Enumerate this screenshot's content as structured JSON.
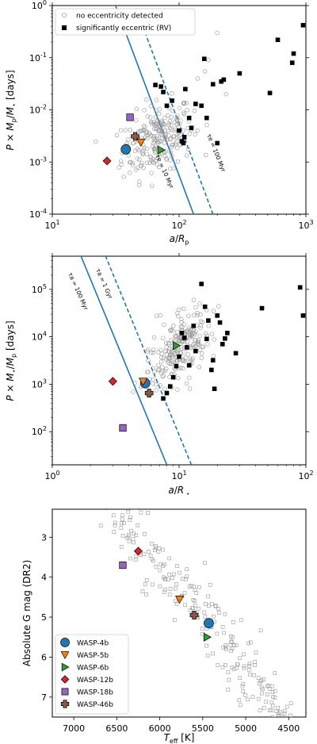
{
  "colors": {
    "wasp4b": "#1f77b4",
    "wasp5b": "#ff7f0e",
    "wasp6b": "#2ca02c",
    "wasp12b": "#d62728",
    "wasp18b": "#9467bd",
    "wasp46b": "#8c564b",
    "timescale_line": "#1f77b4"
  },
  "chart_data": [
    {
      "type": "scatter",
      "xlabel": "a/R_p",
      "ylabel": "P × M_p/M_* [days]",
      "xscale": "log",
      "yscale": "log",
      "xlim": [
        10,
        1000
      ],
      "ylim": [
        0.0001,
        1
      ],
      "xticks": [
        "10^1",
        "10^2",
        "10^3"
      ],
      "yticks": [
        "10^-4",
        "10^-3",
        "10^-2",
        "10^-1",
        "10^0"
      ],
      "legend": {
        "location": "upper-left",
        "entries": [
          "no eccentricity detected",
          "significantly eccentric (RV)"
        ]
      },
      "lines": [
        {
          "label": "τ_e = 10 Myr",
          "style": "solid",
          "x_at_ymin": 130,
          "slope": -6.5
        },
        {
          "label": "τ_e = 100 Myr",
          "style": "dashed",
          "x_at_ymin": 185,
          "slope": -6.5
        }
      ],
      "eccentric": [
        [
          65,
          0.03
        ],
        [
          72,
          0.028
        ],
        [
          75,
          0.022
        ],
        [
          80,
          0.012
        ],
        [
          88,
          0.015
        ],
        [
          100,
          0.004
        ],
        [
          105,
          0.0025
        ],
        [
          108,
          0.0023
        ],
        [
          110,
          0.003
        ],
        [
          112,
          0.025
        ],
        [
          120,
          0.007
        ],
        [
          125,
          0.0045
        ],
        [
          135,
          0.013
        ],
        [
          150,
          0.012
        ],
        [
          158,
          0.095
        ],
        [
          165,
          0.007
        ],
        [
          185,
          0.031
        ],
        [
          200,
          0.0023
        ],
        [
          215,
          0.035
        ],
        [
          225,
          0.038
        ],
        [
          300,
          0.05
        ],
        [
          520,
          0.021
        ],
        [
          600,
          0.22
        ],
        [
          780,
          0.08
        ],
        [
          800,
          0.12
        ],
        [
          950,
          0.42
        ]
      ],
      "highlighted": [
        {
          "name": "WASP-4b",
          "x": 38,
          "y": 0.00175
        },
        {
          "name": "WASP-5b",
          "x": 50,
          "y": 0.0024
        },
        {
          "name": "WASP-6b",
          "x": 72,
          "y": 0.0017
        },
        {
          "name": "WASP-12b",
          "x": 27,
          "y": 0.00105
        },
        {
          "name": "WASP-18b",
          "x": 41,
          "y": 0.0072
        },
        {
          "name": "WASP-46b",
          "x": 45,
          "y": 0.0031
        }
      ]
    },
    {
      "type": "scatter",
      "xlabel": "a/R_*",
      "ylabel": "P × M_*/M_p [days]",
      "xscale": "log",
      "yscale": "log",
      "xlim": [
        1,
        100
      ],
      "ylim": [
        20,
        500000
      ],
      "xticks": [
        "10^0",
        "10^1",
        "10^2"
      ],
      "yticks": [
        "10^2",
        "10^3",
        "10^4",
        "10^5"
      ],
      "lines": [
        {
          "label": "τ_a = 100 Myr",
          "style": "solid",
          "x_at_ymin": 8.0,
          "slope": -6.5
        },
        {
          "label": "τ_a = 1 Gyr",
          "style": "dashed",
          "x_at_ymin": 12.5,
          "slope": -6.5
        }
      ],
      "eccentric": [
        [
          7.5,
          500
        ],
        [
          8,
          650
        ],
        [
          8.5,
          900
        ],
        [
          9,
          1400
        ],
        [
          9.5,
          2400
        ],
        [
          10,
          3800
        ],
        [
          10.5,
          12000
        ],
        [
          11,
          9500
        ],
        [
          11.5,
          6000
        ],
        [
          12,
          2500
        ],
        [
          13,
          17000
        ],
        [
          13.5,
          5000
        ],
        [
          15,
          130000
        ],
        [
          16,
          43000
        ],
        [
          16.5,
          9000
        ],
        [
          17,
          22000
        ],
        [
          18,
          2000
        ],
        [
          18.5,
          3200
        ],
        [
          19,
          800
        ],
        [
          20,
          28000
        ],
        [
          21,
          20000
        ],
        [
          22,
          7000
        ],
        [
          23,
          9200
        ],
        [
          24,
          12000
        ],
        [
          28,
          4500
        ],
        [
          45,
          40000
        ],
        [
          90,
          110000
        ],
        [
          95,
          28000
        ]
      ],
      "highlighted": [
        {
          "name": "WASP-4b",
          "x": 5.4,
          "y": 1050
        },
        {
          "name": "WASP-5b",
          "x": 5.2,
          "y": 1150
        },
        {
          "name": "WASP-6b",
          "x": 9.5,
          "y": 6500
        },
        {
          "name": "WASP-12b",
          "x": 3.0,
          "y": 1150
        },
        {
          "name": "WASP-18b",
          "x": 3.6,
          "y": 120
        },
        {
          "name": "WASP-46b",
          "x": 5.8,
          "y": 650
        }
      ]
    },
    {
      "type": "scatter",
      "xlabel": "T_eff [K]",
      "ylabel": "Absolute G mag (DR2)",
      "xlim": [
        7250,
        4300
      ],
      "ylim": [
        7.5,
        2.3
      ],
      "xticks": [
        "7000",
        "6500",
        "6000",
        "5500",
        "5000",
        "4500"
      ],
      "yticks": [
        "3",
        "4",
        "5",
        "6",
        "7"
      ],
      "legend": {
        "location": "lower-left",
        "entries": [
          "WASP-4b",
          "WASP-5b",
          "WASP-6b",
          "WASP-12b",
          "WASP-18b",
          "WASP-46b"
        ]
      },
      "highlighted": [
        {
          "name": "WASP-4b",
          "x": 5430,
          "y": 5.15
        },
        {
          "name": "WASP-5b",
          "x": 5770,
          "y": 4.55
        },
        {
          "name": "WASP-6b",
          "x": 5450,
          "y": 5.5
        },
        {
          "name": "WASP-12b",
          "x": 6250,
          "y": 3.35
        },
        {
          "name": "WASP-18b",
          "x": 6430,
          "y": 3.7
        },
        {
          "name": "WASP-46b",
          "x": 5600,
          "y": 4.95
        }
      ]
    }
  ],
  "labels": {
    "legend_top_1": "no eccentricity detected",
    "legend_top_2": "significantly eccentric (RV)",
    "line_top_1": "τe = 10 Myr",
    "line_top_2": "τe = 100 Myr",
    "line_mid_1": "τa = 100 Myr",
    "line_mid_2": "τa = 1 Gyr"
  }
}
